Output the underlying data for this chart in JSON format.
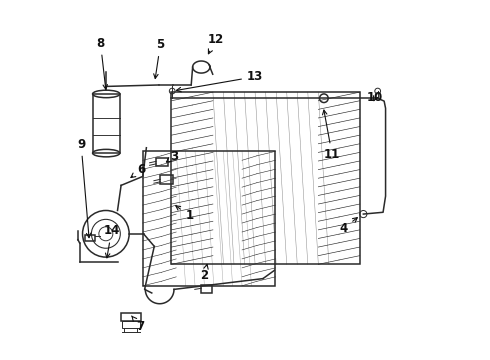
{
  "bg_color": "#ffffff",
  "line_color": "#2a2a2a",
  "text_color": "#111111",
  "labels_arrows": {
    "1": [
      0.345,
      0.4,
      0.298,
      0.435
    ],
    "2": [
      0.387,
      0.235,
      0.395,
      0.268
    ],
    "3": [
      0.302,
      0.565,
      0.278,
      0.548
    ],
    "4": [
      0.775,
      0.365,
      0.822,
      0.402
    ],
    "5": [
      0.264,
      0.878,
      0.248,
      0.772
    ],
    "6": [
      0.212,
      0.53,
      0.173,
      0.5
    ],
    "7": [
      0.208,
      0.092,
      0.183,
      0.122
    ],
    "8": [
      0.097,
      0.882,
      0.113,
      0.742
    ],
    "9": [
      0.043,
      0.6,
      0.066,
      0.328
    ],
    "10": [
      0.863,
      0.73,
      0.858,
      0.718
    ],
    "11": [
      0.743,
      0.57,
      0.718,
      0.706
    ],
    "12": [
      0.418,
      0.892,
      0.393,
      0.842
    ],
    "13": [
      0.528,
      0.788,
      0.298,
      0.748
    ],
    "14": [
      0.128,
      0.358,
      0.113,
      0.272
    ]
  }
}
